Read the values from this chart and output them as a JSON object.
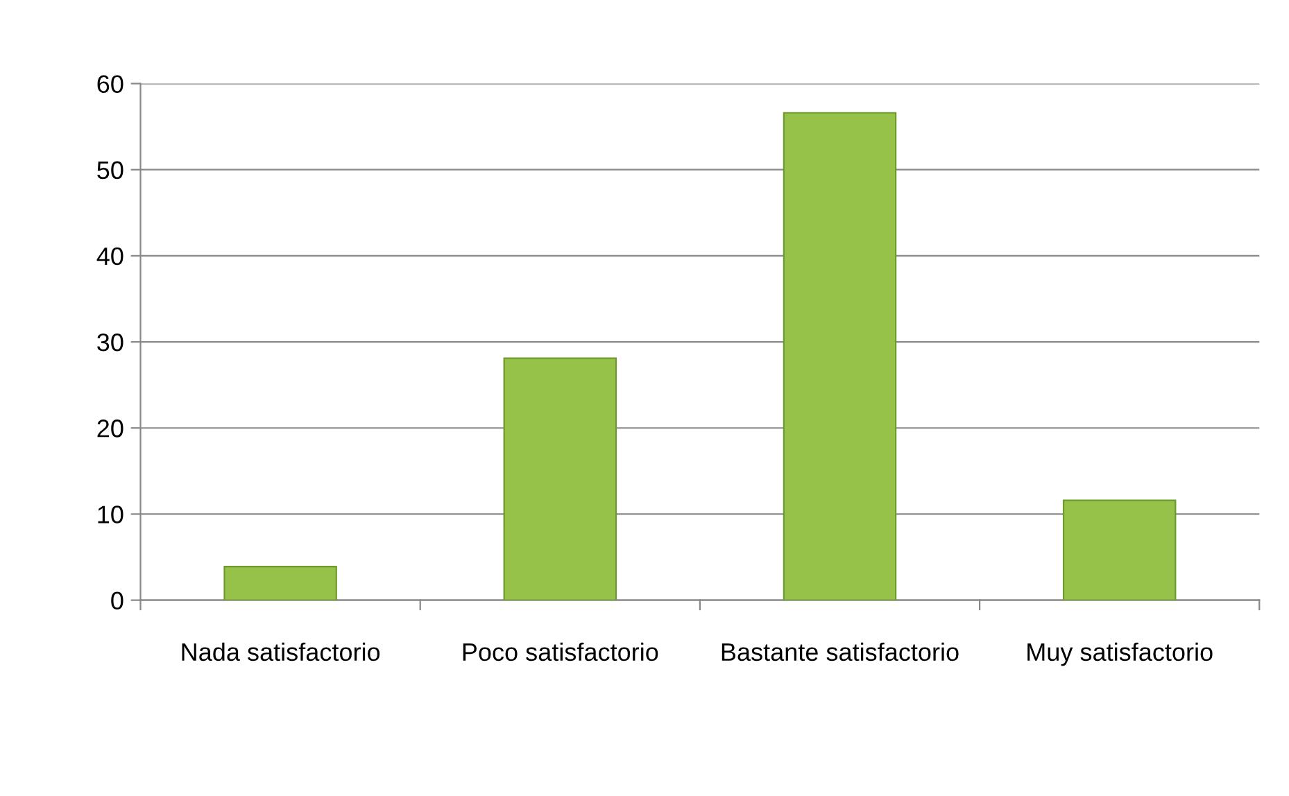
{
  "chart_data": {
    "type": "bar",
    "categories": [
      "Nada satisfactorio",
      "Poco satisfactorio",
      "Bastante satisfactorio",
      "Muy satisfactorio"
    ],
    "values": [
      3.9,
      28.1,
      56.6,
      11.6
    ],
    "color": "#96c24a",
    "ylim": [
      0,
      60
    ],
    "yticks": [
      0,
      10,
      20,
      30,
      40,
      50,
      60
    ],
    "grid": "y",
    "legend": false
  }
}
